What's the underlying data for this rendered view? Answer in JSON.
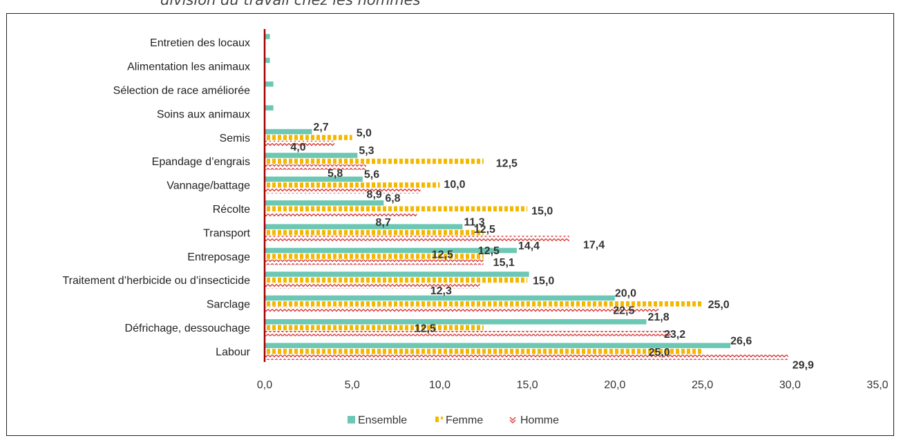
{
  "page_caption": "division du travail chez les hommes",
  "chart_data": {
    "type": "bar",
    "orientation": "horizontal",
    "categories": [
      "Entretien des locaux",
      "Alimentation les animaux",
      "Sélection de race améliorée",
      "Soins aux animaux",
      "Semis",
      "Epandage d’engrais",
      "Vannage/battage",
      "Récolte",
      "Transport",
      "Entreposage",
      "Traitement d’herbicide ou d’insecticide",
      "Sarclage",
      "Défrichage, dessouchage",
      "Labour"
    ],
    "series": [
      {
        "name": "Ensemble",
        "color": "#6cc7b4",
        "pattern": "solid",
        "values": [
          0.3,
          0.3,
          0.5,
          0.5,
          2.7,
          5.3,
          5.6,
          6.8,
          11.3,
          14.4,
          15.1,
          20.0,
          21.8,
          26.6
        ],
        "labels": [
          "",
          "",
          "",
          "",
          "2,7",
          "5,3",
          "5,6",
          "6,8",
          "11,3",
          "14,4",
          "15,1",
          "20,0",
          "21,8",
          "26,6"
        ]
      },
      {
        "name": "Femme",
        "color": "#f5b800",
        "pattern": "dashed",
        "values": [
          0,
          0,
          0,
          0,
          5.0,
          12.5,
          10.0,
          15.0,
          12.5,
          12.5,
          15.0,
          25.0,
          12.5,
          25.0
        ],
        "labels": [
          "",
          "",
          "",
          "",
          "5,0",
          "12,5",
          "10,0",
          "15,0",
          "12,5",
          "12,5",
          "15,0",
          "25,0",
          "12,5",
          "25,0"
        ]
      },
      {
        "name": "Homme",
        "color": "#d83a3a",
        "pattern": "zigzag",
        "values": [
          0,
          0,
          0,
          0,
          4.0,
          5.8,
          8.9,
          8.7,
          17.4,
          12.5,
          12.3,
          22.5,
          23.2,
          29.9
        ],
        "labels": [
          "",
          "",
          "",
          "",
          "4,0",
          "5,8",
          "8,9",
          "8,7",
          "17,4",
          "12,5",
          "12,3",
          "22,5",
          "23,2",
          "29,9"
        ]
      }
    ],
    "xlim": [
      0,
      35
    ],
    "xticks": [
      "0,0",
      "5,0",
      "10,0",
      "15,0",
      "20,0",
      "25,0",
      "30,0",
      "35,0"
    ],
    "legend_position": "bottom",
    "grid": false
  }
}
